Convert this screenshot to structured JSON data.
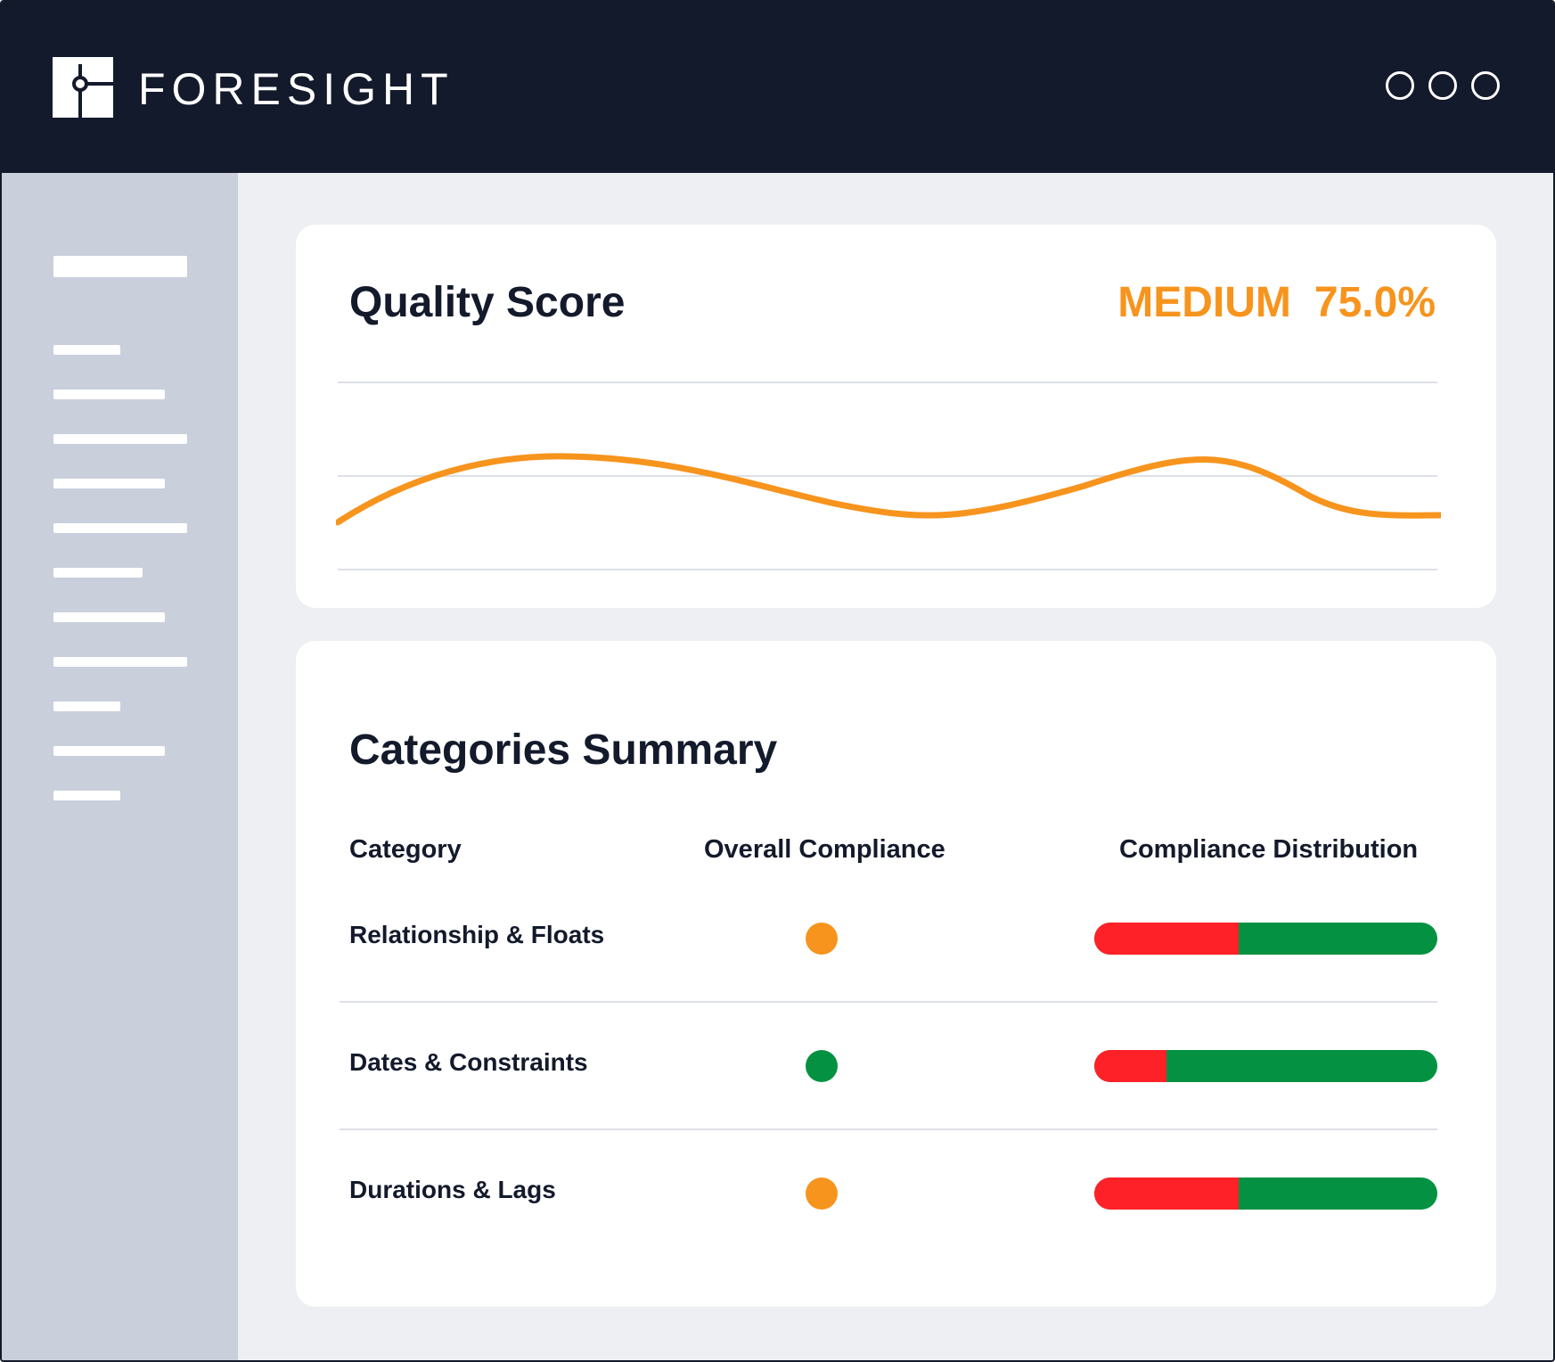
{
  "app": {
    "brand": "FORESIGHT"
  },
  "quality_score": {
    "title": "Quality Score",
    "level": "MEDIUM",
    "value": "75.0%",
    "accent_color": "#f7941d"
  },
  "categories_summary": {
    "title": "Categories Summary",
    "columns": [
      "Category",
      "Overall Compliance",
      "Compliance Distribution"
    ],
    "rows": [
      {
        "label": "Relationship & Floats",
        "status_color": "#f7941d",
        "noncompliant_fraction": 0.42
      },
      {
        "label": "Dates & Constraints",
        "status_color": "#059142",
        "noncompliant_fraction": 0.21
      },
      {
        "label": "Durations & Lags",
        "status_color": "#f7941d",
        "noncompliant_fraction": 0.42
      }
    ],
    "colors": {
      "red": "#ff2128",
      "green": "#059142"
    }
  },
  "icons": [
    "foresight-logo-icon",
    "window-dot-icon"
  ]
}
